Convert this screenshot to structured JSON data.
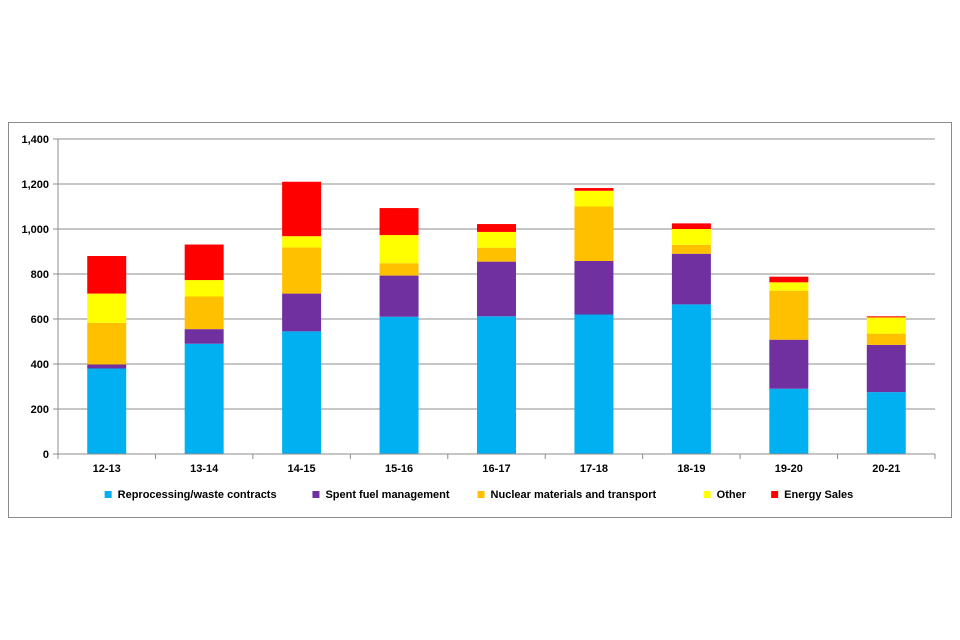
{
  "chart_data": {
    "type": "bar",
    "stacked": true,
    "title": "",
    "xlabel": "",
    "ylabel": "",
    "ylim": [
      0,
      1400
    ],
    "yticks": [
      0,
      200,
      400,
      600,
      800,
      1000,
      1200,
      1400
    ],
    "ytick_labels": [
      "0",
      "200",
      "400",
      "600",
      "800",
      "1,000",
      "1,200",
      "1,400"
    ],
    "grid": true,
    "legend_position": "bottom",
    "categories": [
      "12-13",
      "13-14",
      "14-15",
      "15-16",
      "16-17",
      "17-18",
      "18-19",
      "19-20",
      "20-21"
    ],
    "series": [
      {
        "name": "Reprocessing/waste contracts",
        "color": "#00B0F0",
        "values": [
          380,
          490,
          545,
          610,
          612,
          620,
          665,
          290,
          275
        ]
      },
      {
        "name": "Spent fuel management",
        "color": "#7030A0",
        "values": [
          18,
          65,
          168,
          183,
          243,
          238,
          225,
          218,
          210
        ]
      },
      {
        "name": "Nuclear materials and transport",
        "color": "#FFC000",
        "values": [
          185,
          145,
          205,
          55,
          62,
          242,
          40,
          218,
          50
        ]
      },
      {
        "name": "Other",
        "color": "#FFFF00",
        "values": [
          130,
          73,
          50,
          125,
          70,
          70,
          70,
          37,
          72
        ]
      },
      {
        "name": "Energy Sales",
        "color": "#FF0000",
        "values": [
          167,
          158,
          242,
          120,
          35,
          12,
          25,
          25,
          5
        ]
      }
    ]
  }
}
